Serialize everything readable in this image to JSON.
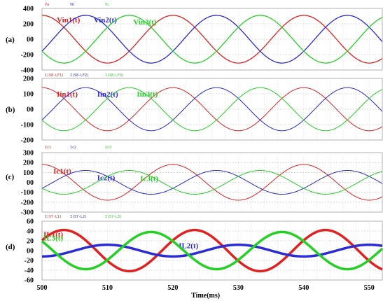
{
  "chart_data": [
    {
      "type": "line",
      "panel_label": "(a)",
      "legend": [
        "Va",
        "Vb",
        "Vc"
      ],
      "ylim": [
        -400,
        400
      ],
      "yticks": [
        400,
        200,
        0,
        -200,
        -400
      ],
      "ytick_labels": [
        "400",
        "200",
        "00",
        "-200",
        "-400"
      ],
      "x_range_ms": [
        500,
        552
      ],
      "grid": true,
      "series": [
        {
          "name": "Vin1(t)",
          "color": "#e32020",
          "amplitude": 310,
          "period_ms": 20,
          "phase_deg": 90,
          "peaks_ms": [
            506,
            526,
            546
          ],
          "width": 1.3
        },
        {
          "name": "Vin2(t)",
          "color": "#2a2ad6",
          "amplitude": 310,
          "period_ms": 20,
          "phase_deg": -30,
          "peaks_ms": [
            512.7,
            532.7
          ],
          "width": 1.3
        },
        {
          "name": "Vin3(t)",
          "color": "#25d025",
          "amplitude": 310,
          "period_ms": 20,
          "phase_deg": 210,
          "peaks_ms": [
            519.3,
            539.3
          ],
          "width": 1.3
        }
      ]
    },
    {
      "type": "line",
      "panel_label": "(b)",
      "legend": [
        "I(S8-LF1)",
        "I(S8-LF2)",
        "I(S8-LF3)"
      ],
      "ylim": [
        -200,
        200
      ],
      "yticks": [
        200,
        100,
        0,
        -100,
        -200
      ],
      "ytick_labels": [
        "200",
        "100",
        "00",
        "-100",
        "-200"
      ],
      "x_range_ms": [
        500,
        552
      ],
      "grid": true,
      "series": [
        {
          "name": "Iin1(t)",
          "color": "#e32020",
          "amplitude": 140,
          "period_ms": 20,
          "phase_deg": 90,
          "peaks_ms": [
            506,
            526,
            546
          ],
          "width": 1
        },
        {
          "name": "Iin2(t)",
          "color": "#2a2ad6",
          "amplitude": 140,
          "period_ms": 20,
          "phase_deg": -30,
          "peaks_ms": [
            512.7,
            532.7
          ],
          "width": 1
        },
        {
          "name": "Iin3(t)",
          "color": "#25d025",
          "amplitude": 140,
          "period_ms": 20,
          "phase_deg": 210,
          "peaks_ms": [
            519.3,
            539.3
          ],
          "width": 1
        }
      ]
    },
    {
      "type": "line",
      "panel_label": "(c)",
      "legend": [
        "Ic1",
        "Ic2",
        "Ic3"
      ],
      "ylim": [
        -300,
        300
      ],
      "yticks": [
        300,
        200,
        100,
        0,
        -100,
        -200,
        -300
      ],
      "ytick_labels": [
        "300",
        "200",
        "100",
        "00",
        "-100",
        "-200",
        "-300"
      ],
      "x_range_ms": [
        500,
        552
      ],
      "grid": true,
      "series": [
        {
          "name": "Ic1(t)",
          "color": "#e32020",
          "amplitude": 180,
          "period_ms": 20,
          "phase_deg": 90,
          "peaks_ms": [
            506,
            526,
            546
          ],
          "width": 1
        },
        {
          "name": "Ic2(t)",
          "color": "#2a2ad6",
          "amplitude": 120,
          "period_ms": 20,
          "phase_deg": -30,
          "peaks_ms": [
            512.7,
            532.7
          ],
          "width": 1
        },
        {
          "name": "Ic3(t)",
          "color": "#25d025",
          "amplitude": 120,
          "period_ms": 20,
          "phase_deg": 210,
          "peaks_ms": [
            519.3,
            539.3
          ],
          "width": 1
        }
      ]
    },
    {
      "type": "line",
      "panel_label": "(d)",
      "legend": [
        "I(S7-L1)",
        "I(S7-L2)",
        "I(S7-L3)"
      ],
      "ylim": [
        -60,
        60
      ],
      "yticks": [
        60,
        40,
        20,
        0,
        -20,
        -40,
        -60
      ],
      "ytick_labels": [
        "60",
        "40",
        "20",
        "00",
        "-20",
        "-40",
        "-60"
      ],
      "x_range_ms": [
        500,
        552
      ],
      "grid": true,
      "series": [
        {
          "name": "IL1(t)",
          "color": "#e32020",
          "amplitude": 42,
          "period_ms": 20,
          "phase_deg": 30,
          "peaks_ms": [
            508,
            528,
            548
          ],
          "width": 3.5
        },
        {
          "name": "IL2(t)",
          "color": "#2a2ad6",
          "amplitude": 12,
          "period_ms": 20,
          "phase_deg": -90,
          "peaks_ms": [
            515,
            535
          ],
          "width": 3.5
        },
        {
          "name": "IL3(t)",
          "color": "#25d025",
          "amplitude": 38,
          "period_ms": 20,
          "phase_deg": 150,
          "peaks_ms": [
            501.5,
            521.5,
            541.5
          ],
          "width": 3.5
        }
      ]
    }
  ],
  "xaxis": {
    "label": "Time(ms)",
    "ticks": [
      500,
      510,
      520,
      530,
      540,
      550
    ]
  }
}
